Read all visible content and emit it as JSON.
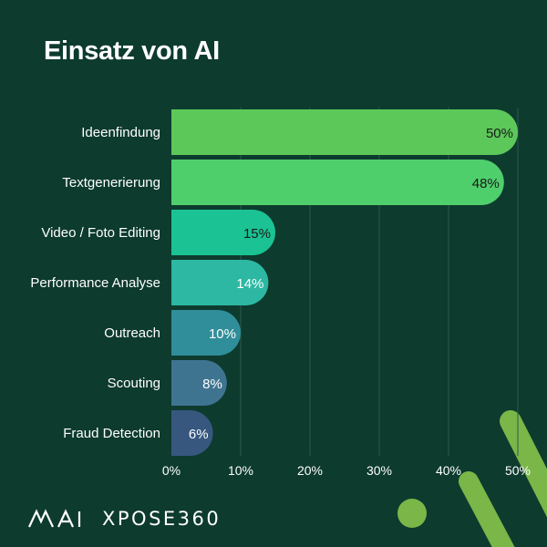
{
  "title": "Einsatz von AI",
  "brand": {
    "mark_text": "AI",
    "name": "XPOSE360"
  },
  "colors": {
    "background": "#0d3b2e",
    "grid": "#2e5a4d",
    "accent_green": "#7ab648"
  },
  "chart_data": {
    "type": "bar",
    "orientation": "horizontal",
    "categories": [
      "Ideenfindung",
      "Textgenerierung",
      "Video / Foto Editing",
      "Performance Analyse",
      "Outreach",
      "Scouting",
      "Fraud Detection"
    ],
    "values": [
      50,
      48,
      15,
      14,
      10,
      8,
      6
    ],
    "value_labels": [
      "50%",
      "48%",
      "15%",
      "14%",
      "10%",
      "8%",
      "6%"
    ],
    "bar_colors": [
      "#5cc85a",
      "#4fcf6c",
      "#1bc293",
      "#2db8a3",
      "#2f8e99",
      "#3f7491",
      "#37577f"
    ],
    "label_colors": [
      "#1a1a1a",
      "#1a1a1a",
      "#1a1a1a",
      "#ffffff",
      "#ffffff",
      "#ffffff",
      "#ffffff"
    ],
    "xlim": [
      0,
      50
    ],
    "xticks": [
      0,
      10,
      20,
      30,
      40,
      50
    ],
    "xtick_labels": [
      "0%",
      "10%",
      "20%",
      "30%",
      "40%",
      "50%"
    ],
    "grid": true,
    "title": "Einsatz von AI"
  }
}
